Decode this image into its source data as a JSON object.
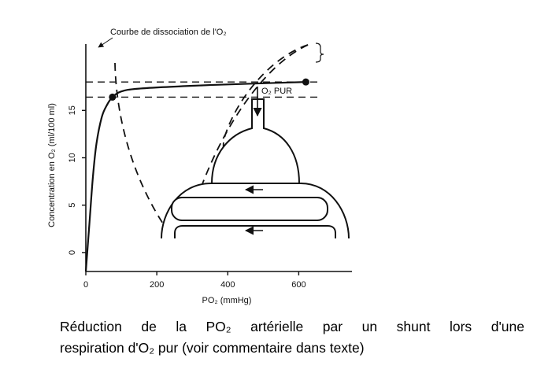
{
  "chart_data": {
    "type": "line",
    "title": "",
    "annotation": "Courbe de dissociation de l'O₂",
    "xlabel": "PO₂ (mmHg)",
    "ylabel": "Concentration en O₂ (ml/100 ml)",
    "xlim": [
      0,
      750
    ],
    "ylim": [
      -2,
      22
    ],
    "x_ticks": [
      "0",
      "200",
      "400",
      "600"
    ],
    "x_tick_values": [
      0,
      200,
      400,
      600
    ],
    "y_ticks": [
      "0",
      "5",
      "10",
      "15"
    ],
    "y_tick_values": [
      0,
      5,
      10,
      15
    ],
    "grid": false,
    "series": [
      {
        "values": [
          {
            "x": 0,
            "y": -2
          },
          {
            "x": 10,
            "y": 3
          },
          {
            "x": 20,
            "y": 8
          },
          {
            "x": 30,
            "y": 11.5
          },
          {
            "x": 45,
            "y": 14.3
          },
          {
            "x": 60,
            "y": 15.6
          },
          {
            "x": 75,
            "y": 16.4
          },
          {
            "x": 100,
            "y": 17.0
          },
          {
            "x": 150,
            "y": 17.3
          },
          {
            "x": 300,
            "y": 17.6
          },
          {
            "x": 450,
            "y": 17.8
          },
          {
            "x": 620,
            "y": 18.0
          }
        ]
      }
    ],
    "points": [
      {
        "x": 75,
        "y": 16.4
      },
      {
        "x": 620,
        "y": 18.0
      }
    ],
    "reference_lines_y": [
      16.4,
      18.0
    ]
  },
  "diagram": {
    "o2_label": "O₂ PUR"
  },
  "caption": {
    "line1": "Réduction de la PO₂ artérielle par un shunt lors d'une",
    "line2": "respiration d'O₂ pur (voir commentaire dans texte)"
  },
  "colors": {
    "ink": "#111111",
    "background": "#ffffff"
  }
}
